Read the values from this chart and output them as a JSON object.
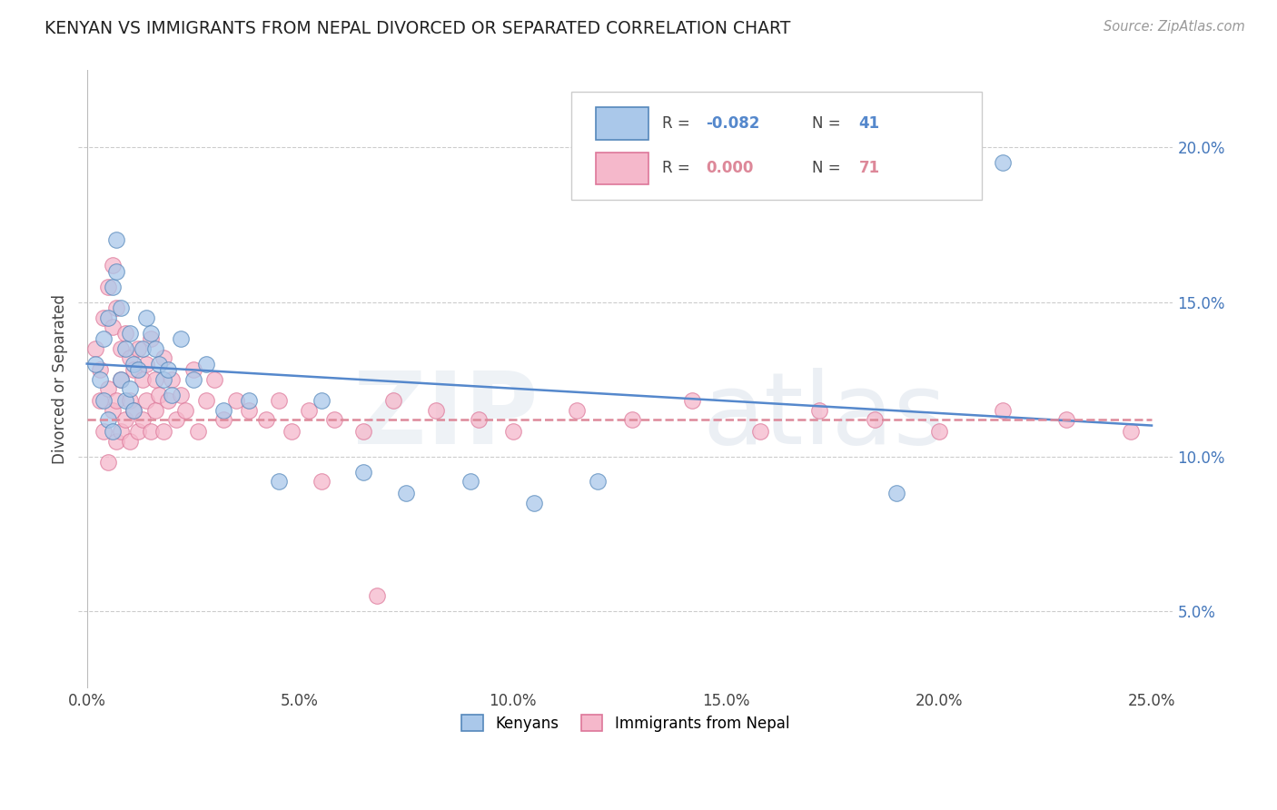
{
  "title": "KENYAN VS IMMIGRANTS FROM NEPAL DIVORCED OR SEPARATED CORRELATION CHART",
  "source_text": "Source: ZipAtlas.com",
  "ylabel": "Divorced or Separated",
  "x_tick_labels": [
    "0.0%",
    "5.0%",
    "10.0%",
    "15.0%",
    "20.0%",
    "25.0%"
  ],
  "x_tick_values": [
    0.0,
    0.05,
    0.1,
    0.15,
    0.2,
    0.25
  ],
  "y_tick_labels": [
    "5.0%",
    "10.0%",
    "15.0%",
    "20.0%"
  ],
  "y_tick_values": [
    0.05,
    0.1,
    0.15,
    0.2
  ],
  "xlim": [
    -0.002,
    0.255
  ],
  "ylim": [
    0.025,
    0.225
  ],
  "kenyan_R": "-0.082",
  "kenyan_N": "41",
  "nepal_R": "0.000",
  "nepal_N": "71",
  "legend_labels": [
    "Kenyans",
    "Immigrants from Nepal"
  ],
  "kenyan_color": "#aac8ea",
  "nepal_color": "#f5b8cb",
  "kenyan_edge_color": "#5588bb",
  "nepal_edge_color": "#dd7799",
  "kenyan_line_color": "#5588cc",
  "nepal_line_color": "#dd8899",
  "watermark_zip": "ZIP",
  "watermark_atlas": "atlas",
  "background_color": "#ffffff",
  "grid_color": "#cccccc",
  "kenyan_line_start_y": 0.13,
  "kenyan_line_end_y": 0.11,
  "nepal_line_y": 0.112,
  "kenyan_scatter_x": [
    0.002,
    0.003,
    0.004,
    0.004,
    0.005,
    0.005,
    0.006,
    0.006,
    0.007,
    0.007,
    0.008,
    0.008,
    0.009,
    0.009,
    0.01,
    0.01,
    0.011,
    0.011,
    0.012,
    0.013,
    0.014,
    0.015,
    0.016,
    0.017,
    0.018,
    0.019,
    0.02,
    0.022,
    0.025,
    0.028,
    0.032,
    0.038,
    0.045,
    0.055,
    0.065,
    0.075,
    0.09,
    0.105,
    0.12,
    0.19,
    0.215
  ],
  "kenyan_scatter_y": [
    0.13,
    0.125,
    0.138,
    0.118,
    0.145,
    0.112,
    0.155,
    0.108,
    0.16,
    0.17,
    0.148,
    0.125,
    0.135,
    0.118,
    0.14,
    0.122,
    0.13,
    0.115,
    0.128,
    0.135,
    0.145,
    0.14,
    0.135,
    0.13,
    0.125,
    0.128,
    0.12,
    0.138,
    0.125,
    0.13,
    0.115,
    0.118,
    0.092,
    0.118,
    0.095,
    0.088,
    0.092,
    0.085,
    0.092,
    0.088,
    0.195
  ],
  "nepal_scatter_x": [
    0.002,
    0.003,
    0.003,
    0.004,
    0.004,
    0.005,
    0.005,
    0.005,
    0.006,
    0.006,
    0.006,
    0.007,
    0.007,
    0.007,
    0.008,
    0.008,
    0.008,
    0.009,
    0.009,
    0.01,
    0.01,
    0.01,
    0.011,
    0.011,
    0.012,
    0.012,
    0.013,
    0.013,
    0.014,
    0.014,
    0.015,
    0.015,
    0.016,
    0.016,
    0.017,
    0.018,
    0.018,
    0.019,
    0.02,
    0.021,
    0.022,
    0.023,
    0.025,
    0.026,
    0.028,
    0.03,
    0.032,
    0.035,
    0.038,
    0.042,
    0.045,
    0.048,
    0.052,
    0.058,
    0.065,
    0.072,
    0.082,
    0.092,
    0.1,
    0.115,
    0.128,
    0.142,
    0.158,
    0.172,
    0.185,
    0.2,
    0.215,
    0.23,
    0.245,
    0.055,
    0.068
  ],
  "nepal_scatter_y": [
    0.135,
    0.128,
    0.118,
    0.145,
    0.108,
    0.155,
    0.122,
    0.098,
    0.162,
    0.142,
    0.115,
    0.148,
    0.118,
    0.105,
    0.135,
    0.125,
    0.108,
    0.14,
    0.112,
    0.132,
    0.118,
    0.105,
    0.128,
    0.115,
    0.135,
    0.108,
    0.125,
    0.112,
    0.13,
    0.118,
    0.138,
    0.108,
    0.125,
    0.115,
    0.12,
    0.132,
    0.108,
    0.118,
    0.125,
    0.112,
    0.12,
    0.115,
    0.128,
    0.108,
    0.118,
    0.125,
    0.112,
    0.118,
    0.115,
    0.112,
    0.118,
    0.108,
    0.115,
    0.112,
    0.108,
    0.118,
    0.115,
    0.112,
    0.108,
    0.115,
    0.112,
    0.118,
    0.108,
    0.115,
    0.112,
    0.108,
    0.115,
    0.112,
    0.108,
    0.092,
    0.055
  ]
}
